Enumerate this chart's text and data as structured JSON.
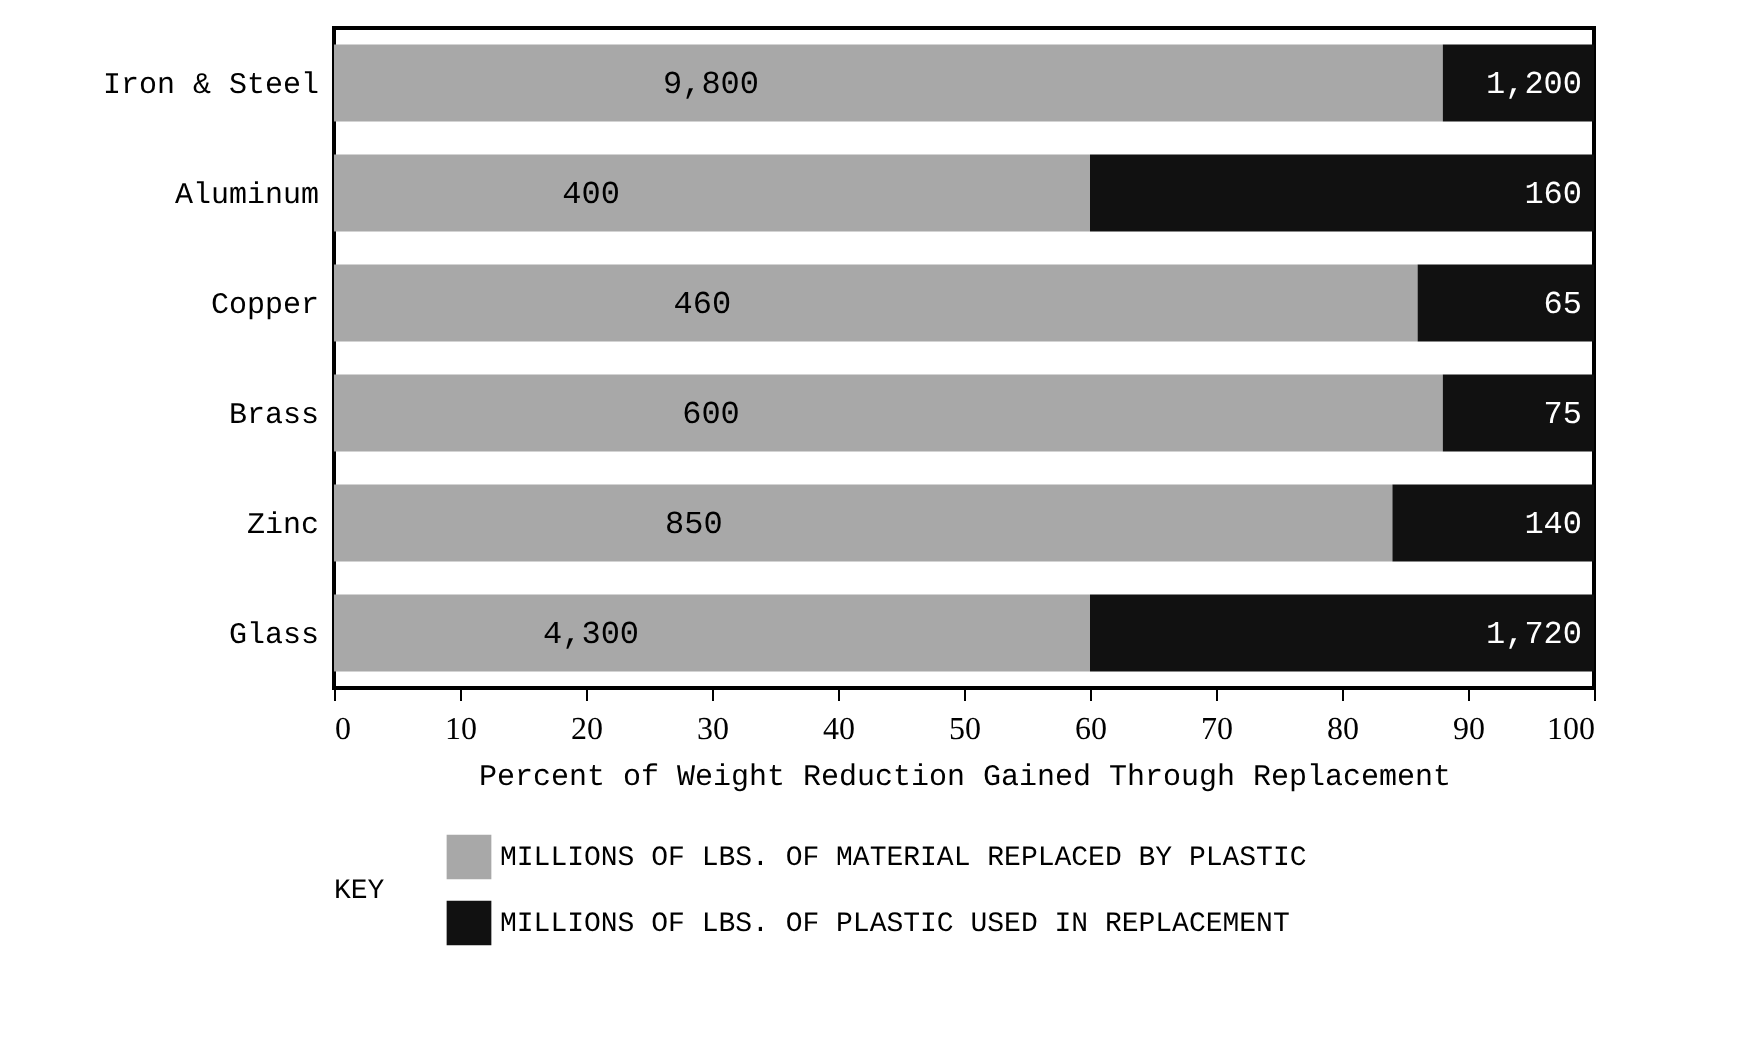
{
  "chart_data": {
    "type": "bar",
    "orientation": "horizontal",
    "stacked": true,
    "categories": [
      "Iron & Steel",
      "Aluminum",
      "Copper",
      "Brass",
      "Zinc",
      "Glass"
    ],
    "series": [
      {
        "name": "MILLIONS OF LBS. OF MATERIAL REPLACED BY PLASTIC",
        "color": "#a8a8a8",
        "values": [
          88,
          60,
          86,
          88,
          84,
          60
        ]
      },
      {
        "name": "MILLIONS OF LBS. OF PLASTIC USED IN REPLACEMENT",
        "color": "#111111",
        "values": [
          12,
          40,
          14,
          12,
          16,
          40
        ]
      }
    ],
    "annotations": [
      "9,800",
      "400",
      "460",
      "600",
      "850",
      "4,300",
      "1,200",
      "160",
      "65",
      "75",
      "140",
      "1,720"
    ],
    "xlabel": "Percent of Weight Reduction Gained Through Replacement",
    "xlim": [
      0,
      100
    ],
    "xticks": [
      0,
      10,
      20,
      30,
      40,
      50,
      60,
      70,
      80,
      90,
      100
    ],
    "legend_title": "KEY",
    "legend": "bottom",
    "grid": false
  }
}
